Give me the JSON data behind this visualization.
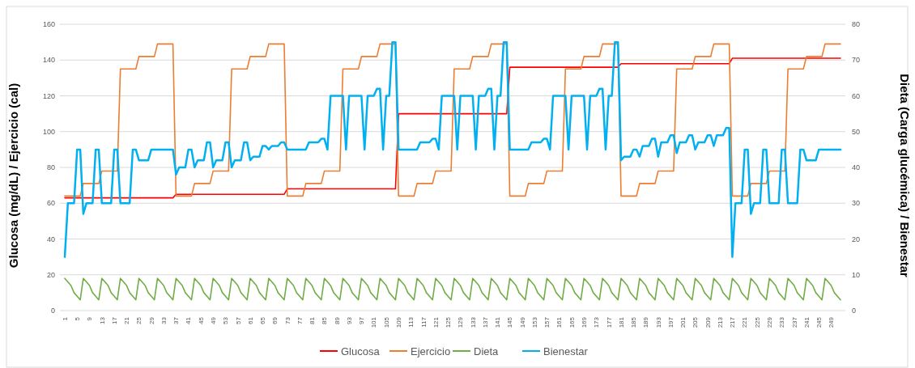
{
  "chart_data": {
    "type": "line",
    "ylabel": "Glucosa (mg/dL) / Ejercicio (cal)",
    "y2label": "Dieta (Carga glucémica) / Bienestar",
    "categories": [
      "1",
      null,
      null,
      null,
      "5",
      null,
      null,
      null,
      "9",
      null,
      null,
      null,
      "13",
      null,
      null,
      null,
      "17",
      null,
      null,
      null,
      "21",
      null,
      null,
      null,
      "25",
      null,
      null,
      null,
      "29",
      null,
      null,
      null,
      "33",
      null,
      null,
      null,
      "37",
      null,
      null,
      null,
      "41",
      null,
      null,
      null,
      "45",
      null,
      null,
      null,
      "49",
      null,
      null,
      null,
      "53",
      null,
      null,
      null,
      "57",
      null,
      null,
      null,
      "61",
      null,
      null,
      null,
      "65",
      null,
      null,
      null,
      "69",
      null,
      null,
      null,
      "73",
      null,
      null,
      null,
      "77",
      null,
      null,
      null,
      "81",
      null,
      null,
      null,
      "85",
      null,
      null,
      null,
      "89",
      null,
      null,
      null,
      "93",
      null,
      null,
      null,
      "97",
      null,
      null,
      null,
      "101",
      null,
      null,
      null,
      "105",
      null,
      null,
      null,
      "109",
      null,
      null,
      null,
      "113",
      null,
      null,
      null,
      "117",
      null,
      null,
      null,
      "121",
      null,
      null,
      null,
      "125",
      null,
      null,
      null,
      "129",
      null,
      null,
      null,
      "133",
      null,
      null,
      null,
      "137",
      null,
      null,
      null,
      "141",
      null,
      null,
      null,
      "145",
      null,
      null,
      null,
      "149",
      null,
      null,
      null,
      "153",
      null,
      null,
      null,
      "157",
      null,
      null,
      null,
      "161",
      null,
      null,
      null,
      "165",
      null,
      null,
      null,
      "169",
      null,
      null,
      null,
      "173",
      null,
      null,
      null,
      "177",
      null,
      null,
      null,
      "181",
      null,
      null,
      null,
      "185",
      null,
      null,
      null,
      "189",
      null,
      null,
      null,
      "193",
      null,
      null,
      null,
      "197",
      null,
      null,
      null,
      "201",
      null,
      null,
      null,
      "205",
      null,
      null,
      null,
      "209",
      null,
      null,
      null,
      "213",
      null,
      null,
      null,
      "217",
      null,
      null,
      null,
      "221",
      null,
      null,
      null,
      "225",
      null,
      null,
      null,
      "229",
      null,
      null,
      null,
      "233",
      null,
      null,
      null,
      "237",
      null,
      null,
      null,
      "241",
      null,
      null,
      null,
      "245",
      null,
      null,
      null,
      "249",
      null,
      null,
      null
    ],
    "series": [
      {
        "name": "Glucosa",
        "color": "#ff0000",
        "values": [
          63,
          63,
          63,
          63,
          63,
          63,
          63,
          63,
          63,
          63,
          63,
          63,
          63,
          63,
          63,
          63,
          63,
          63,
          63,
          63,
          63,
          63,
          63,
          63,
          63,
          63,
          63,
          63,
          63,
          63,
          63,
          63,
          63,
          63,
          63,
          63,
          65,
          65,
          65,
          65,
          65,
          65,
          65,
          65,
          65,
          65,
          65,
          65,
          65,
          65,
          65,
          65,
          65,
          65,
          65,
          65,
          65,
          65,
          65,
          65,
          65,
          65,
          65,
          65,
          65,
          65,
          65,
          65,
          65,
          65,
          65,
          65,
          68,
          68,
          68,
          68,
          68,
          68,
          68,
          68,
          68,
          68,
          68,
          68,
          68,
          68,
          68,
          68,
          68,
          68,
          68,
          68,
          68,
          68,
          68,
          68,
          68,
          68,
          68,
          68,
          68,
          68,
          68,
          68,
          68,
          68,
          68,
          68,
          110,
          110,
          110,
          110,
          110,
          110,
          110,
          110,
          110,
          110,
          110,
          110,
          110,
          110,
          110,
          110,
          110,
          110,
          110,
          110,
          110,
          110,
          110,
          110,
          110,
          110,
          110,
          110,
          110,
          110,
          110,
          110,
          110,
          110,
          110,
          110,
          136,
          136,
          136,
          136,
          136,
          136,
          136,
          136,
          136,
          136,
          136,
          136,
          136,
          136,
          136,
          136,
          136,
          136,
          136,
          136,
          136,
          136,
          136,
          136,
          136,
          136,
          136,
          136,
          136,
          136,
          136,
          136,
          136,
          136,
          136,
          136,
          138,
          138,
          138,
          138,
          138,
          138,
          138,
          138,
          138,
          138,
          138,
          138,
          138,
          138,
          138,
          138,
          138,
          138,
          138,
          138,
          138,
          138,
          138,
          138,
          138,
          138,
          138,
          138,
          138,
          138,
          138,
          138,
          138,
          138,
          138,
          138,
          141,
          141,
          141,
          141,
          141,
          141,
          141,
          141,
          141,
          141,
          141,
          141,
          141,
          141,
          141,
          141,
          141,
          141,
          141,
          141,
          141,
          141,
          141,
          141,
          141,
          141,
          141,
          141,
          141,
          141,
          141,
          141,
          141,
          141,
          141,
          141
        ]
      },
      {
        "name": "Ejercicio",
        "color": "#ed7d31",
        "values": [
          64,
          64,
          64,
          64,
          64,
          64,
          71,
          71,
          71,
          71,
          71,
          71,
          78,
          78,
          78,
          78,
          78,
          78,
          135,
          135,
          135,
          135,
          135,
          135,
          142,
          142,
          142,
          142,
          142,
          142,
          149,
          149,
          149,
          149,
          149,
          149,
          64,
          64,
          64,
          64,
          64,
          64,
          71,
          71,
          71,
          71,
          71,
          71,
          78,
          78,
          78,
          78,
          78,
          78,
          135,
          135,
          135,
          135,
          135,
          135,
          142,
          142,
          142,
          142,
          142,
          142,
          149,
          149,
          149,
          149,
          149,
          149,
          64,
          64,
          64,
          64,
          64,
          64,
          71,
          71,
          71,
          71,
          71,
          71,
          78,
          78,
          78,
          78,
          78,
          78,
          135,
          135,
          135,
          135,
          135,
          135,
          142,
          142,
          142,
          142,
          142,
          142,
          149,
          149,
          149,
          149,
          149,
          149,
          64,
          64,
          64,
          64,
          64,
          64,
          71,
          71,
          71,
          71,
          71,
          71,
          78,
          78,
          78,
          78,
          78,
          78,
          135,
          135,
          135,
          135,
          135,
          135,
          142,
          142,
          142,
          142,
          142,
          142,
          149,
          149,
          149,
          149,
          149,
          149,
          64,
          64,
          64,
          64,
          64,
          64,
          71,
          71,
          71,
          71,
          71,
          71,
          78,
          78,
          78,
          78,
          78,
          78,
          135,
          135,
          135,
          135,
          135,
          135,
          142,
          142,
          142,
          142,
          142,
          142,
          149,
          149,
          149,
          149,
          149,
          149,
          64,
          64,
          64,
          64,
          64,
          64,
          71,
          71,
          71,
          71,
          71,
          71,
          78,
          78,
          78,
          78,
          78,
          78,
          135,
          135,
          135,
          135,
          135,
          135,
          142,
          142,
          142,
          142,
          142,
          142,
          149,
          149,
          149,
          149,
          149,
          149,
          64,
          64,
          64,
          64,
          64,
          64,
          71,
          71,
          71,
          71,
          71,
          71,
          78,
          78,
          78,
          78,
          78,
          78,
          135,
          135,
          135,
          135,
          135,
          135,
          142,
          142,
          142,
          142,
          142,
          142,
          149,
          149,
          149,
          149,
          149,
          149
        ]
      },
      {
        "name": "Dieta",
        "color": "#70ad47",
        "axis": "y2",
        "values": [
          9,
          8,
          7,
          5,
          4,
          3,
          9,
          8,
          7,
          5,
          4,
          3,
          9,
          8,
          7,
          5,
          4,
          3,
          9,
          8,
          7,
          5,
          4,
          3,
          9,
          8,
          7,
          5,
          4,
          3,
          9,
          8,
          7,
          5,
          4,
          3,
          9,
          8,
          7,
          5,
          4,
          3,
          9,
          8,
          7,
          5,
          4,
          3,
          9,
          8,
          7,
          5,
          4,
          3,
          9,
          8,
          7,
          5,
          4,
          3,
          9,
          8,
          7,
          5,
          4,
          3,
          9,
          8,
          7,
          5,
          4,
          3,
          9,
          8,
          7,
          5,
          4,
          3,
          9,
          8,
          7,
          5,
          4,
          3,
          9,
          8,
          7,
          5,
          4,
          3,
          9,
          8,
          7,
          5,
          4,
          3,
          9,
          8,
          7,
          5,
          4,
          3,
          9,
          8,
          7,
          5,
          4,
          3,
          9,
          8,
          7,
          5,
          4,
          3,
          9,
          8,
          7,
          5,
          4,
          3,
          9,
          8,
          7,
          5,
          4,
          3,
          9,
          8,
          7,
          5,
          4,
          3,
          9,
          8,
          7,
          5,
          4,
          3,
          9,
          8,
          7,
          5,
          4,
          3,
          9,
          8,
          7,
          5,
          4,
          3,
          9,
          8,
          7,
          5,
          4,
          3,
          9,
          8,
          7,
          5,
          4,
          3,
          9,
          8,
          7,
          5,
          4,
          3,
          9,
          8,
          7,
          5,
          4,
          3,
          9,
          8,
          7,
          5,
          4,
          3,
          9,
          8,
          7,
          5,
          4,
          3,
          9,
          8,
          7,
          5,
          4,
          3,
          9,
          8,
          7,
          5,
          4,
          3,
          9,
          8,
          7,
          5,
          4,
          3,
          9,
          8,
          7,
          5,
          4,
          3,
          9,
          8,
          7,
          5,
          4,
          3,
          9,
          8,
          7,
          5,
          4,
          3,
          9,
          8,
          7,
          5,
          4,
          3,
          9,
          8,
          7,
          5,
          4,
          3,
          9,
          8,
          7,
          5,
          4,
          3,
          9,
          8,
          7,
          5,
          4,
          3,
          9,
          8,
          7,
          5,
          4,
          3
        ]
      },
      {
        "name": "Bienestar",
        "color": "#00b0f0",
        "axis": "y2",
        "values": [
          15,
          30,
          30,
          30,
          45,
          45,
          27,
          30,
          30,
          30,
          45,
          45,
          30,
          30,
          30,
          30,
          45,
          45,
          30,
          30,
          30,
          30,
          45,
          45,
          42,
          42,
          42,
          42,
          45,
          45,
          45,
          45,
          45,
          45,
          45,
          45,
          38,
          40,
          40,
          40,
          45,
          45,
          40,
          42,
          42,
          42,
          47,
          47,
          40,
          42,
          42,
          42,
          47,
          47,
          40,
          42,
          42,
          42,
          47,
          47,
          42,
          43,
          43,
          43,
          46,
          46,
          45,
          46,
          46,
          46,
          47,
          47,
          45,
          45,
          45,
          45,
          45,
          45,
          45,
          47,
          47,
          47,
          47,
          48,
          48,
          45,
          60,
          60,
          60,
          60,
          60,
          45,
          60,
          60,
          60,
          60,
          60,
          45,
          60,
          60,
          60,
          62,
          62,
          45,
          60,
          60,
          75,
          75,
          45,
          45,
          45,
          45,
          45,
          45,
          45,
          47,
          47,
          47,
          47,
          48,
          48,
          45,
          60,
          60,
          60,
          60,
          60,
          45,
          60,
          60,
          60,
          60,
          60,
          45,
          60,
          60,
          60,
          62,
          62,
          45,
          60,
          60,
          75,
          75,
          45,
          45,
          45,
          45,
          45,
          45,
          45,
          47,
          47,
          47,
          47,
          48,
          48,
          45,
          60,
          60,
          60,
          60,
          60,
          45,
          60,
          60,
          60,
          60,
          60,
          45,
          60,
          60,
          60,
          62,
          62,
          45,
          60,
          60,
          75,
          75,
          42,
          43,
          43,
          43,
          45,
          45,
          43,
          46,
          46,
          46,
          48,
          48,
          43,
          47,
          47,
          47,
          49,
          49,
          44,
          47,
          47,
          47,
          49,
          49,
          45,
          47,
          47,
          47,
          49,
          49,
          46,
          49,
          49,
          49,
          51,
          51,
          15,
          30,
          30,
          30,
          45,
          45,
          27,
          30,
          30,
          30,
          45,
          45,
          30,
          30,
          30,
          30,
          45,
          45,
          30,
          30,
          30,
          30,
          45,
          45,
          42,
          42,
          42,
          42,
          45,
          45,
          45,
          45,
          45,
          45,
          45,
          45
        ]
      }
    ],
    "ylim": [
      0,
      160
    ],
    "yticks": [
      0,
      20,
      40,
      60,
      80,
      100,
      120,
      140,
      160
    ],
    "y2lim": [
      0,
      80
    ],
    "y2ticks": [
      0,
      10,
      20,
      30,
      40,
      50,
      60,
      70,
      80
    ],
    "grid": "y",
    "legend": "bottom",
    "line_style": "solid"
  }
}
